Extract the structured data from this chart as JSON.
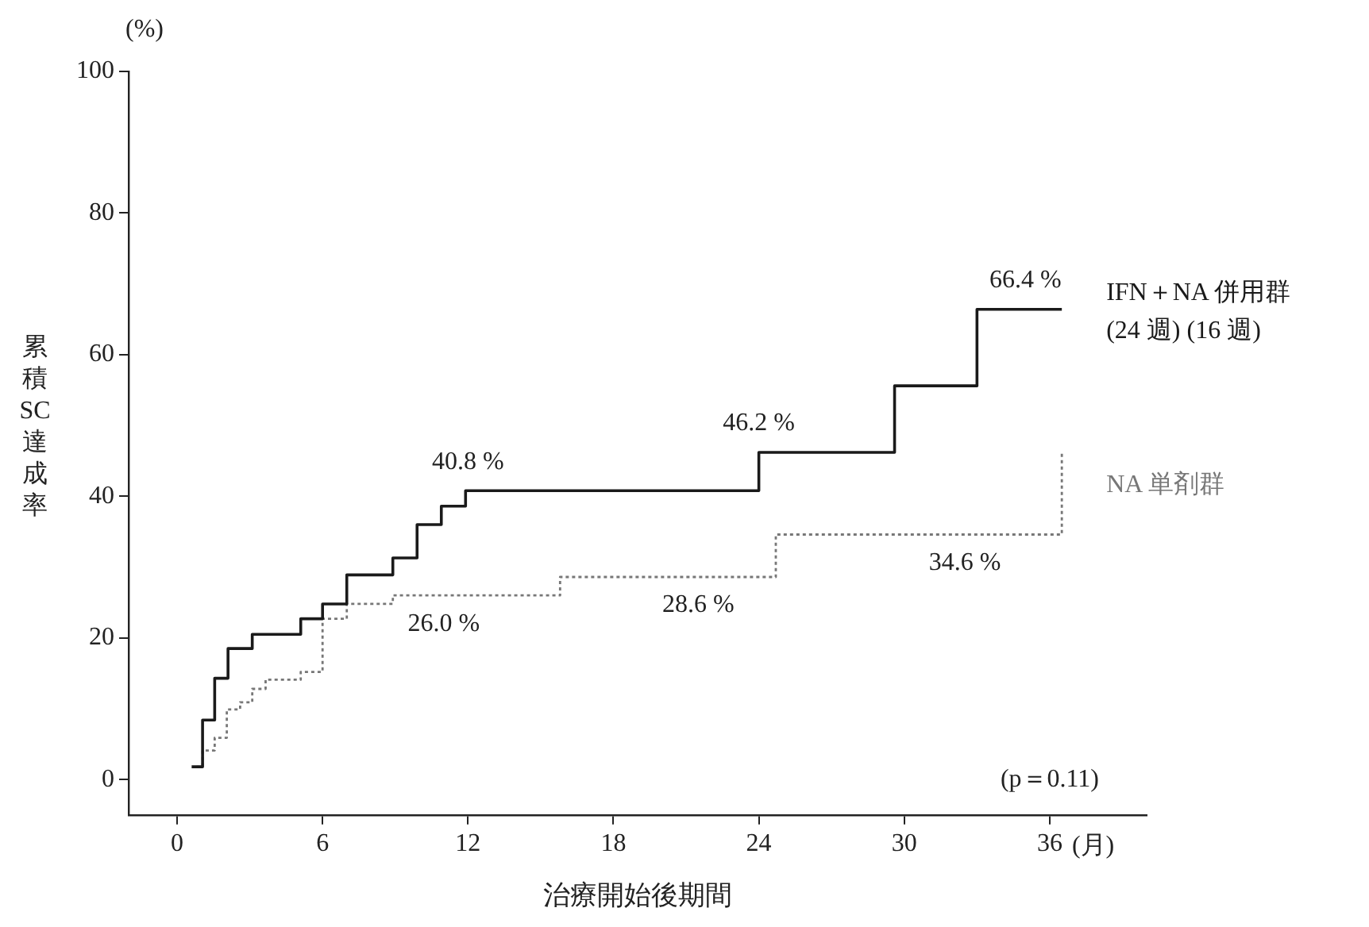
{
  "chart_data": {
    "type": "step",
    "xlabel": "治療開始後期間",
    "ylabel": "累積SC達成率",
    "xlim": [
      -2,
      40
    ],
    "xticks": [
      0,
      6,
      12,
      18,
      24,
      30,
      36
    ],
    "ylim": [
      -5,
      100
    ],
    "yticks": [
      0,
      20,
      40,
      60,
      80,
      100
    ],
    "grid": false,
    "legend": "right",
    "marker": "none",
    "series": [
      {
        "name": "IFN＋NA 併用群\n(24 週) (16 週)",
        "color": "#1a1a1a",
        "line_style": "solid",
        "x": [
          0.6,
          1.05,
          1.55,
          2.1,
          3.1,
          5.1,
          6.0,
          7.0,
          8.9,
          9.9,
          10.9,
          11.9,
          24,
          29.6,
          33,
          36.5
        ],
        "values": [
          1.8,
          8.4,
          14.3,
          18.5,
          20.5,
          22.7,
          24.8,
          28.9,
          31.3,
          36.0,
          38.6,
          40.8,
          46.2,
          55.6,
          66.4,
          66.4
        ]
      },
      {
        "name": "NA 単剤群",
        "color": "#777777",
        "line_style": "dotted",
        "x": [
          0.8,
          1.05,
          1.55,
          2.05,
          2.6,
          3.1,
          3.65,
          5.1,
          6.0,
          7.0,
          8.9,
          15.8,
          24.7,
          36.4,
          36.5
        ],
        "values": [
          1.8,
          4.1,
          5.9,
          9.9,
          10.9,
          12.8,
          14.1,
          15.2,
          22.7,
          24.8,
          26.0,
          28.6,
          34.6,
          34.6,
          46
        ]
      }
    ],
    "annotations": [
      {
        "text": "40.8 %",
        "x": 12,
        "y": 40.8
      },
      {
        "text": "46.2 %",
        "x": 24,
        "y": 46.2
      },
      {
        "text": "66.4 %",
        "x": 35,
        "y": 66.4
      },
      {
        "text": "26.0 %",
        "x": 11,
        "y": 26.0
      },
      {
        "text": "28.6 %",
        "x": 21.5,
        "y": 28.6
      },
      {
        "text": "34.6 %",
        "x": 32.5,
        "y": 34.6
      },
      "(p＝0.11)",
      "(%)",
      "(月)"
    ]
  }
}
